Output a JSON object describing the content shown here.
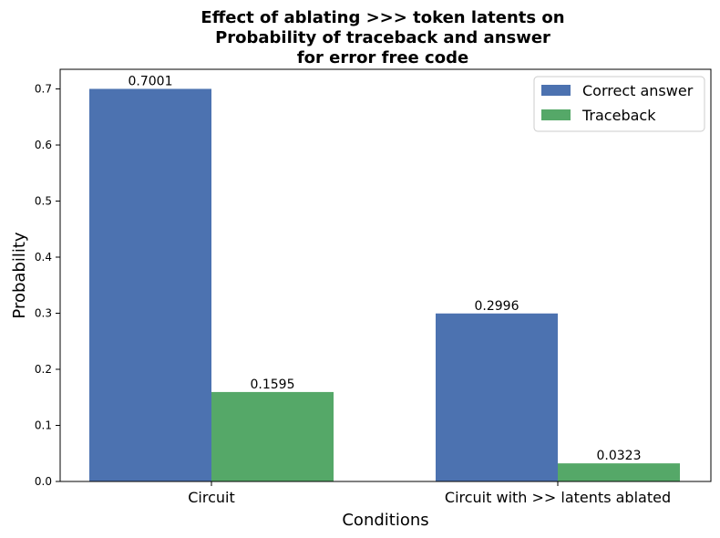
{
  "chart_data": {
    "type": "bar",
    "title_lines": [
      "Effect of ablating >>> token latents on",
      "Probability of traceback and answer",
      "for error free code"
    ],
    "xlabel": "Conditions",
    "ylabel": "Probability",
    "categories": [
      "Circuit",
      "Circuit with >> latents ablated"
    ],
    "series": [
      {
        "name": "Correct answer",
        "color": "#4c72b0",
        "values": [
          0.7001,
          0.2996
        ],
        "labels": [
          "0.7001",
          "0.2996"
        ]
      },
      {
        "name": "Traceback",
        "color": "#55a868",
        "values": [
          0.1595,
          0.0323
        ],
        "labels": [
          "0.1595",
          "0.0323"
        ]
      }
    ],
    "ylim": [
      0,
      0.735
    ],
    "yticks": [
      0.0,
      0.1,
      0.2,
      0.3,
      0.4,
      0.5,
      0.6,
      0.7
    ],
    "ytick_labels": [
      "0.0",
      "0.1",
      "0.2",
      "0.3",
      "0.4",
      "0.5",
      "0.6",
      "0.7"
    ],
    "grid": false,
    "legend_position": "top-right"
  }
}
